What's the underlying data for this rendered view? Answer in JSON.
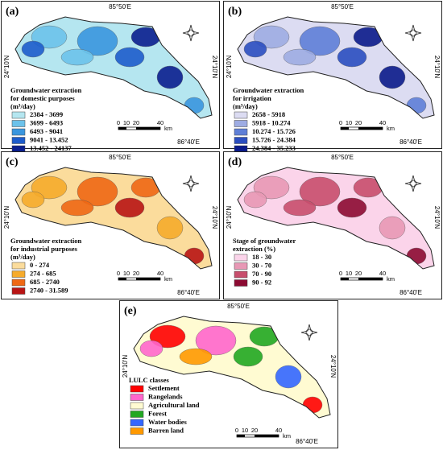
{
  "panels": [
    {
      "label": "(a)",
      "lon_labels": [
        "85°50'E",
        "86°40'E"
      ],
      "lat_labels": [
        "24°10'N",
        "24°10'N"
      ],
      "legend": {
        "title": [
          "Groundwater extraction",
          "for domestic purposes",
          "(m³/day)"
        ],
        "items": [
          {
            "label": "2384 - 3699",
            "color": "#b5e6f0"
          },
          {
            "label": "3699 - 6493",
            "color": "#6cc2ea"
          },
          {
            "label": "6493 - 9041",
            "color": "#3a96de"
          },
          {
            "label": "9041 - 13.452",
            "color": "#1d5ccb"
          },
          {
            "label": "13.452 - 24137",
            "color": "#0b1f8e"
          }
        ]
      },
      "scale": {
        "ticks": [
          "0",
          "10",
          "20",
          "40"
        ],
        "unit": "km"
      }
    },
    {
      "label": "(b)",
      "lon_labels": [
        "85°50'E",
        "86°40'E"
      ],
      "lat_labels": [
        "24°10'N",
        "24°10'N"
      ],
      "legend": {
        "title": [
          "Groundwater extraction",
          "for irrigation",
          "(m³/day)"
        ],
        "items": [
          {
            "label": "2658 - 5918",
            "color": "#dcdcf2"
          },
          {
            "label": "5918 - 10.274",
            "color": "#9eacE3"
          },
          {
            "label": "10.274 - 15.726",
            "color": "#5f7fd7"
          },
          {
            "label": "15.726 - 24.384",
            "color": "#2b4ec0"
          },
          {
            "label": "24.384 - 35.233",
            "color": "#0a1a8a"
          }
        ]
      },
      "scale": {
        "ticks": [
          "0",
          "10",
          "20",
          "40"
        ],
        "unit": "km"
      }
    },
    {
      "label": "(c)",
      "lon_labels": [
        "85°50'E",
        "86°40'E"
      ],
      "lat_labels": [
        "24°10'N",
        "24°10'N"
      ],
      "legend": {
        "title": [
          "Groundwater extraction",
          "for industrial purposes",
          "(m³/day)"
        ],
        "items": [
          {
            "label": "0 - 274",
            "color": "#fbdc9c"
          },
          {
            "label": "274 - 685",
            "color": "#f6ab2c"
          },
          {
            "label": "685 - 2740",
            "color": "#ef6814"
          },
          {
            "label": "2740 - 31.589",
            "color": "#b81414"
          }
        ]
      },
      "scale": {
        "ticks": [
          "0",
          "10",
          "20",
          "40"
        ],
        "unit": "km"
      }
    },
    {
      "label": "(d)",
      "lon_labels": [
        "85°50'E",
        "86°40'E"
      ],
      "lat_labels": [
        "24°10'N",
        "24°10'N"
      ],
      "legend": {
        "title": [
          "Stage of groundwater",
          "extraction (%)"
        ],
        "items": [
          {
            "label": "18 - 30",
            "color": "#fbd4ea"
          },
          {
            "label": "30 - 70",
            "color": "#e898b5"
          },
          {
            "label": "70 - 90",
            "color": "#c84e6d"
          },
          {
            "label": "90 - 92",
            "color": "#8c0a32"
          }
        ]
      },
      "scale": {
        "ticks": [
          "0",
          "10",
          "20",
          "40"
        ],
        "unit": "km"
      }
    },
    {
      "label": "(e)",
      "lon_labels": [
        "85°50'E",
        "86°40'E"
      ],
      "lat_labels": [
        "24°10'N",
        "24°10'N"
      ],
      "legend": {
        "title": [
          "LULC classes"
        ],
        "items": [
          {
            "label": "Settlement",
            "color": "#ff0000"
          },
          {
            "label": "Rangelands",
            "color": "#ff66cc"
          },
          {
            "label": "Agricultural land",
            "color": "#fffbd2"
          },
          {
            "label": "Forest",
            "color": "#22a822"
          },
          {
            "label": "Water bodies",
            "color": "#3366ff"
          },
          {
            "label": "Barren land",
            "color": "#ff9900"
          }
        ]
      },
      "scale": {
        "ticks": [
          "0",
          "10",
          "20",
          "40"
        ],
        "unit": "km"
      }
    }
  ]
}
